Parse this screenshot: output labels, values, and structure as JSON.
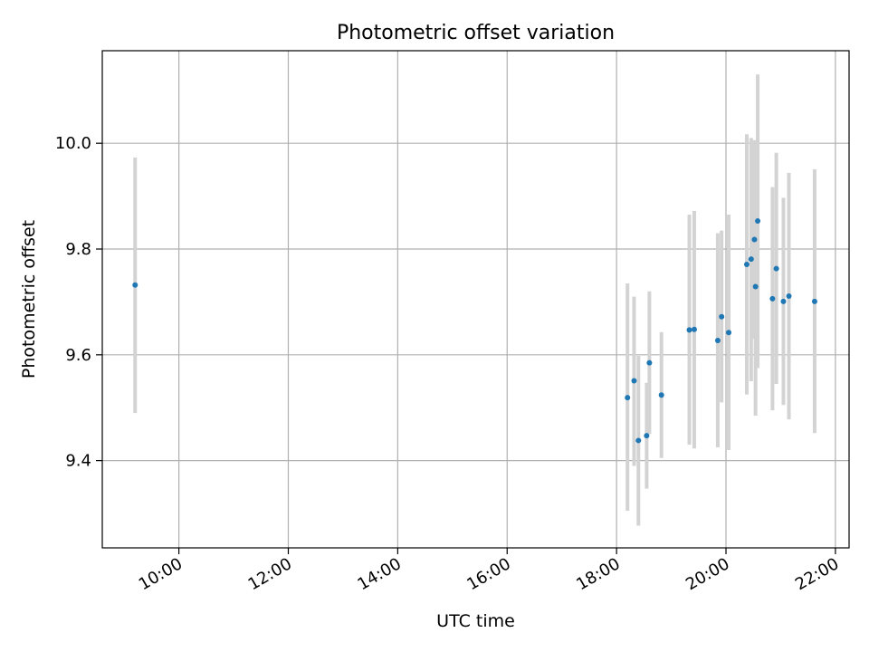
{
  "chart_data": {
    "type": "scatter",
    "title": "Photometric offset variation",
    "xlabel": "UTC time",
    "ylabel": "Photometric offset",
    "x_unit": "hours",
    "xlim": [
      8.6,
      22.25
    ],
    "ylim": [
      9.235,
      10.175
    ],
    "grid": true,
    "colors": {
      "points": "#1f77b4",
      "errorbars": "#d3d3d3",
      "grid": "#b0b0b0"
    },
    "x_ticks": [
      {
        "value": 10,
        "label": "10:00"
      },
      {
        "value": 12,
        "label": "12:00"
      },
      {
        "value": 14,
        "label": "14:00"
      },
      {
        "value": 16,
        "label": "16:00"
      },
      {
        "value": 18,
        "label": "18:00"
      },
      {
        "value": 20,
        "label": "20:00"
      },
      {
        "value": 22,
        "label": "22:00"
      }
    ],
    "y_ticks": [
      {
        "value": 9.4,
        "label": "9.4"
      },
      {
        "value": 9.6,
        "label": "9.6"
      },
      {
        "value": 9.8,
        "label": "9.8"
      },
      {
        "value": 10.0,
        "label": "10.0"
      }
    ],
    "points": [
      {
        "x": 9.2,
        "y": 9.732,
        "lo": 9.49,
        "hi": 9.973
      },
      {
        "x": 18.2,
        "y": 9.519,
        "lo": 9.305,
        "hi": 9.735
      },
      {
        "x": 18.32,
        "y": 9.551,
        "lo": 9.39,
        "hi": 9.71
      },
      {
        "x": 18.4,
        "y": 9.438,
        "lo": 9.277,
        "hi": 9.598
      },
      {
        "x": 18.55,
        "y": 9.447,
        "lo": 9.347,
        "hi": 9.547
      },
      {
        "x": 18.6,
        "y": 9.585,
        "lo": 9.45,
        "hi": 9.72
      },
      {
        "x": 18.82,
        "y": 9.524,
        "lo": 9.405,
        "hi": 9.643
      },
      {
        "x": 19.33,
        "y": 9.647,
        "lo": 9.43,
        "hi": 9.865
      },
      {
        "x": 19.42,
        "y": 9.648,
        "lo": 9.423,
        "hi": 9.872
      },
      {
        "x": 19.85,
        "y": 9.627,
        "lo": 9.425,
        "hi": 9.83
      },
      {
        "x": 19.92,
        "y": 9.672,
        "lo": 9.51,
        "hi": 9.835
      },
      {
        "x": 20.05,
        "y": 9.642,
        "lo": 9.42,
        "hi": 9.865
      },
      {
        "x": 20.38,
        "y": 9.771,
        "lo": 9.525,
        "hi": 10.017
      },
      {
        "x": 20.46,
        "y": 9.781,
        "lo": 9.55,
        "hi": 10.01
      },
      {
        "x": 20.52,
        "y": 9.818,
        "lo": 9.63,
        "hi": 10.006
      },
      {
        "x": 20.54,
        "y": 9.729,
        "lo": 9.485,
        "hi": 9.972
      },
      {
        "x": 20.58,
        "y": 9.853,
        "lo": 9.575,
        "hi": 10.13
      },
      {
        "x": 20.85,
        "y": 9.706,
        "lo": 9.495,
        "hi": 9.917
      },
      {
        "x": 20.92,
        "y": 9.763,
        "lo": 9.545,
        "hi": 9.982
      },
      {
        "x": 21.05,
        "y": 9.701,
        "lo": 9.505,
        "hi": 9.897
      },
      {
        "x": 21.15,
        "y": 9.711,
        "lo": 9.478,
        "hi": 9.944
      },
      {
        "x": 21.62,
        "y": 9.701,
        "lo": 9.452,
        "hi": 9.951
      }
    ]
  }
}
